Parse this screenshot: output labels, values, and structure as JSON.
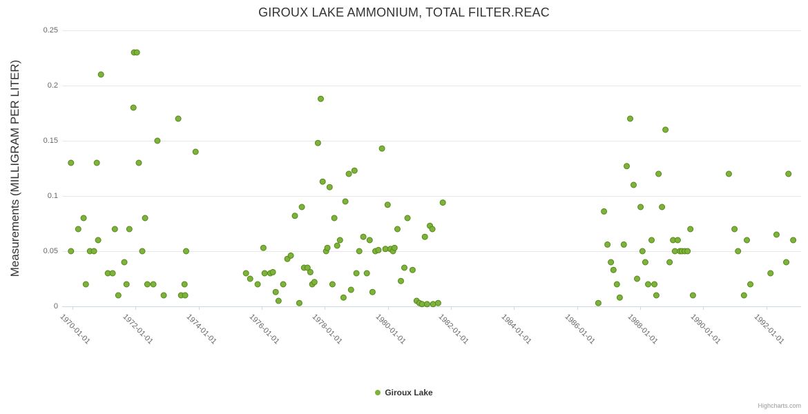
{
  "credits": {
    "label": "Highcharts.com"
  },
  "chart_data": {
    "type": "scatter",
    "title": "GIROUX LAKE AMMONIUM, TOTAL FILTER.REAC",
    "xlabel": "",
    "ylabel": "Measurements (MILLIGRAM PER LITER)",
    "x_unit": "decimal_year",
    "xlim": [
      1969.67,
      1993.1
    ],
    "ylim": [
      0,
      0.25
    ],
    "grid": true,
    "legend_position": "bottom-center",
    "colors": {
      "grid": "#e6e6e6",
      "axis": "#ccd6eb",
      "label": "#666666",
      "title": "#333333"
    },
    "x_ticks": [
      {
        "value": 1970,
        "label": "1970-01-01"
      },
      {
        "value": 1972,
        "label": "1972-01-01"
      },
      {
        "value": 1974,
        "label": "1974-01-01"
      },
      {
        "value": 1976,
        "label": "1976-01-01"
      },
      {
        "value": 1978,
        "label": "1978-01-01"
      },
      {
        "value": 1980,
        "label": "1980-01-01"
      },
      {
        "value": 1982,
        "label": "1982-01-01"
      },
      {
        "value": 1984,
        "label": "1984-01-01"
      },
      {
        "value": 1986,
        "label": "1986-01-01"
      },
      {
        "value": 1988,
        "label": "1988-01-01"
      },
      {
        "value": 1990,
        "label": "1990-01-01"
      },
      {
        "value": 1992,
        "label": "1992-01-01"
      }
    ],
    "y_ticks": [
      {
        "value": 0,
        "label": "0"
      },
      {
        "value": 0.05,
        "label": "0.05"
      },
      {
        "value": 0.1,
        "label": "0.1"
      },
      {
        "value": 0.15,
        "label": "0.15"
      },
      {
        "value": 0.2,
        "label": "0.2"
      },
      {
        "value": 0.25,
        "label": "0.25"
      }
    ],
    "series": [
      {
        "name": "Giroux Lake",
        "color": "#7db33b",
        "border_color": "#56861a",
        "marker": "circle",
        "points": [
          [
            1969.95,
            0.13
          ],
          [
            1969.95,
            0.05
          ],
          [
            1970.18,
            0.07
          ],
          [
            1970.35,
            0.08
          ],
          [
            1970.42,
            0.02
          ],
          [
            1970.55,
            0.05
          ],
          [
            1970.68,
            0.05
          ],
          [
            1970.77,
            0.13
          ],
          [
            1970.81,
            0.06
          ],
          [
            1970.9,
            0.21
          ],
          [
            1971.12,
            0.03
          ],
          [
            1971.27,
            0.03
          ],
          [
            1971.34,
            0.07
          ],
          [
            1971.45,
            0.01
          ],
          [
            1971.64,
            0.04
          ],
          [
            1971.71,
            0.02
          ],
          [
            1971.8,
            0.07
          ],
          [
            1971.93,
            0.18
          ],
          [
            1971.95,
            0.23
          ],
          [
            1972.04,
            0.23
          ],
          [
            1972.1,
            0.13
          ],
          [
            1972.21,
            0.05
          ],
          [
            1972.3,
            0.08
          ],
          [
            1972.37,
            0.02
          ],
          [
            1972.56,
            0.02
          ],
          [
            1972.69,
            0.15
          ],
          [
            1972.89,
            0.01
          ],
          [
            1973.35,
            0.17
          ],
          [
            1973.44,
            0.01
          ],
          [
            1973.55,
            0.02
          ],
          [
            1973.57,
            0.01
          ],
          [
            1973.6,
            0.05
          ],
          [
            1973.9,
            0.14
          ],
          [
            1975.5,
            0.03
          ],
          [
            1975.63,
            0.025
          ],
          [
            1975.87,
            0.02
          ],
          [
            1976.05,
            0.053
          ],
          [
            1976.09,
            0.03
          ],
          [
            1976.27,
            0.03
          ],
          [
            1976.35,
            0.031
          ],
          [
            1976.44,
            0.013
          ],
          [
            1976.53,
            0.005
          ],
          [
            1976.68,
            0.02
          ],
          [
            1976.81,
            0.043
          ],
          [
            1976.92,
            0.046
          ],
          [
            1977.05,
            0.082
          ],
          [
            1977.19,
            0.003
          ],
          [
            1977.27,
            0.09
          ],
          [
            1977.34,
            0.035
          ],
          [
            1977.45,
            0.035
          ],
          [
            1977.54,
            0.031
          ],
          [
            1977.6,
            0.02
          ],
          [
            1977.67,
            0.022
          ],
          [
            1977.78,
            0.148
          ],
          [
            1977.87,
            0.188
          ],
          [
            1977.93,
            0.113
          ],
          [
            1978.04,
            0.05
          ],
          [
            1978.08,
            0.053
          ],
          [
            1978.15,
            0.108
          ],
          [
            1978.24,
            0.02
          ],
          [
            1978.3,
            0.08
          ],
          [
            1978.39,
            0.055
          ],
          [
            1978.48,
            0.06
          ],
          [
            1978.59,
            0.008
          ],
          [
            1978.65,
            0.095
          ],
          [
            1978.76,
            0.12
          ],
          [
            1978.83,
            0.015
          ],
          [
            1978.94,
            0.123
          ],
          [
            1979.0,
            0.03
          ],
          [
            1979.09,
            0.05
          ],
          [
            1979.22,
            0.063
          ],
          [
            1979.33,
            0.03
          ],
          [
            1979.42,
            0.06
          ],
          [
            1979.51,
            0.013
          ],
          [
            1979.6,
            0.05
          ],
          [
            1979.7,
            0.051
          ],
          [
            1979.81,
            0.143
          ],
          [
            1979.92,
            0.052
          ],
          [
            1979.99,
            0.092
          ],
          [
            1980.08,
            0.052
          ],
          [
            1980.16,
            0.05
          ],
          [
            1980.21,
            0.053
          ],
          [
            1980.3,
            0.07
          ],
          [
            1980.41,
            0.023
          ],
          [
            1980.52,
            0.035
          ],
          [
            1980.62,
            0.08
          ],
          [
            1980.78,
            0.033
          ],
          [
            1980.91,
            0.005
          ],
          [
            1981.0,
            0.003
          ],
          [
            1981.08,
            0.002
          ],
          [
            1981.17,
            0.063
          ],
          [
            1981.24,
            0.002
          ],
          [
            1981.33,
            0.073
          ],
          [
            1981.41,
            0.07
          ],
          [
            1981.43,
            0.002
          ],
          [
            1981.59,
            0.003
          ],
          [
            1981.74,
            0.094
          ],
          [
            1986.67,
            0.003
          ],
          [
            1986.85,
            0.086
          ],
          [
            1986.96,
            0.056
          ],
          [
            1987.07,
            0.04
          ],
          [
            1987.15,
            0.033
          ],
          [
            1987.26,
            0.02
          ],
          [
            1987.35,
            0.008
          ],
          [
            1987.48,
            0.056
          ],
          [
            1987.57,
            0.127
          ],
          [
            1987.68,
            0.17
          ],
          [
            1987.79,
            0.11
          ],
          [
            1987.9,
            0.025
          ],
          [
            1988.01,
            0.09
          ],
          [
            1988.07,
            0.05
          ],
          [
            1988.16,
            0.04
          ],
          [
            1988.25,
            0.02
          ],
          [
            1988.36,
            0.06
          ],
          [
            1988.45,
            0.02
          ],
          [
            1988.51,
            0.01
          ],
          [
            1988.58,
            0.12
          ],
          [
            1988.69,
            0.09
          ],
          [
            1988.8,
            0.16
          ],
          [
            1988.93,
            0.04
          ],
          [
            1989.04,
            0.06
          ],
          [
            1989.1,
            0.05
          ],
          [
            1989.19,
            0.06
          ],
          [
            1989.26,
            0.05
          ],
          [
            1989.32,
            0.05
          ],
          [
            1989.41,
            0.05
          ],
          [
            1989.5,
            0.05
          ],
          [
            1989.59,
            0.07
          ],
          [
            1989.67,
            0.01
          ],
          [
            1990.81,
            0.12
          ],
          [
            1990.99,
            0.07
          ],
          [
            1991.1,
            0.05
          ],
          [
            1991.29,
            0.01
          ],
          [
            1991.38,
            0.06
          ],
          [
            1991.49,
            0.02
          ],
          [
            1992.13,
            0.03
          ],
          [
            1992.32,
            0.065
          ],
          [
            1992.63,
            0.04
          ],
          [
            1992.7,
            0.12
          ],
          [
            1992.85,
            0.06
          ]
        ]
      }
    ]
  }
}
